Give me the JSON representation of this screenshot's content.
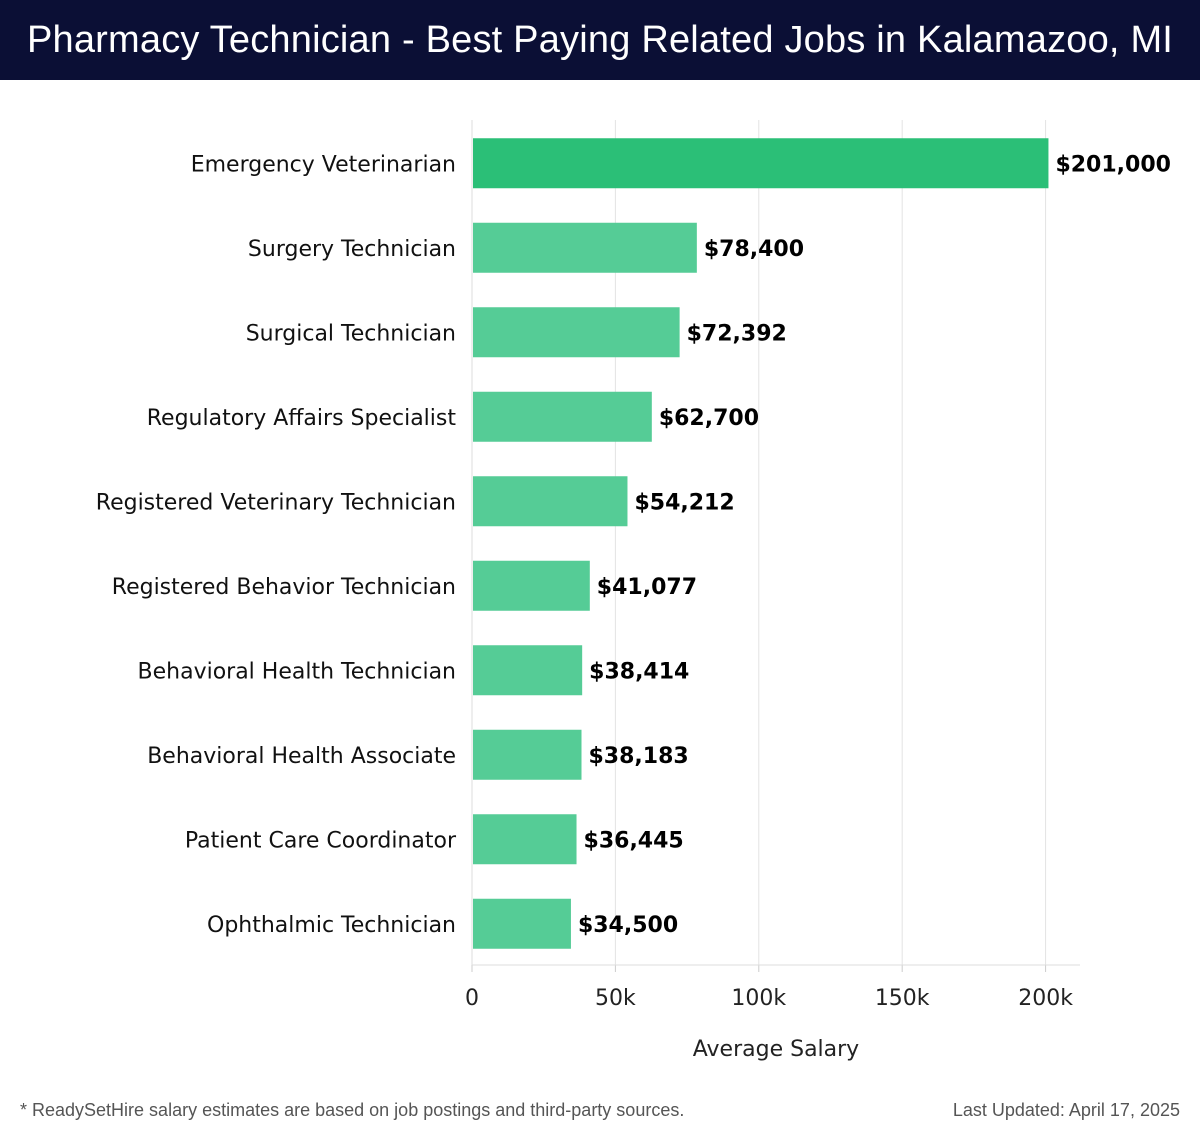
{
  "header": {
    "title": "Pharmacy Technician - Best Paying Related Jobs in Kalamazoo, MI"
  },
  "chart_data": {
    "type": "bar",
    "orientation": "horizontal",
    "title": "",
    "xlabel": "Average Salary",
    "ylabel": "",
    "xlim": [
      0,
      212000
    ],
    "x_ticks": [
      0,
      50000,
      100000,
      150000,
      200000
    ],
    "x_tick_labels": [
      "0",
      "50k",
      "100k",
      "150k",
      "200k"
    ],
    "grid": "vertical",
    "categories": [
      "Emergency Veterinarian",
      "Surgery Technician",
      "Surgical Technician",
      "Regulatory Affairs Specialist",
      "Registered Veterinary Technician",
      "Registered Behavior Technician",
      "Behavioral Health Technician",
      "Behavioral Health Associate",
      "Patient Care Coordinator",
      "Ophthalmic Technician"
    ],
    "values": [
      201000,
      78400,
      72392,
      62700,
      54212,
      41077,
      38414,
      38183,
      36445,
      34500
    ],
    "value_labels": [
      "$201,000",
      "$78,400",
      "$72,392",
      "$62,700",
      "$54,212",
      "$41,077",
      "$38,414",
      "$38,183",
      "$36,445",
      "$34,500"
    ],
    "colors": {
      "top_bar": "#2bbf77",
      "bar": "#55cc96"
    }
  },
  "footer": {
    "note": "* ReadySetHire salary estimates are based on job postings and third-party sources.",
    "updated": "Last Updated: April 17, 2025"
  }
}
